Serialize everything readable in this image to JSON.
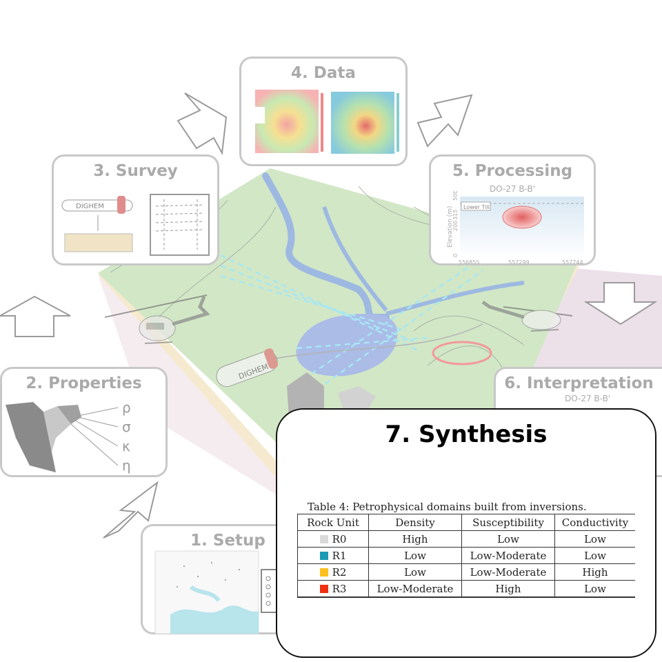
{
  "stages": {
    "setup": {
      "title": "1. Setup"
    },
    "properties": {
      "title": "2. Properties",
      "symbols": [
        "ρ",
        "σ",
        "κ",
        "η"
      ]
    },
    "survey": {
      "title": "3. Survey",
      "instrument_label": "DIGHEM"
    },
    "data": {
      "title": "4. Data"
    },
    "processing": {
      "title": "5. Processing",
      "section_label": "DO-27 B-B'",
      "unit_label": "Lower Till",
      "y_axis_label": "Elevation (m)",
      "y_ticks": [
        "500",
        "315",
        "200",
        "0"
      ],
      "x_ticks": [
        "556855",
        "557299",
        "557744"
      ]
    },
    "interpretation": {
      "title": "6. Interpretation",
      "section_label": "DO-27 B-B'"
    },
    "synthesis": {
      "title": "7. Synthesis"
    }
  },
  "scene": {
    "bird_label": "DIGHEM"
  },
  "table": {
    "caption": "Table 4: Petrophysical domains built from inversions.",
    "headers": [
      "Rock Unit",
      "Density",
      "Susceptibility",
      "Conductivity"
    ],
    "rows": [
      {
        "unit": "R0",
        "color": "#d9d9d9",
        "density": "High",
        "susceptibility": "Low",
        "conductivity": "Low"
      },
      {
        "unit": "R1",
        "color": "#1a9ab5",
        "density": "Low",
        "susceptibility": "Low-Moderate",
        "conductivity": "Low"
      },
      {
        "unit": "R2",
        "color": "#fdc020",
        "density": "Low",
        "susceptibility": "Low-Moderate",
        "conductivity": "High"
      },
      {
        "unit": "R3",
        "color": "#f03010",
        "density": "Low-Moderate",
        "susceptibility": "High",
        "conductivity": "Low"
      }
    ]
  }
}
